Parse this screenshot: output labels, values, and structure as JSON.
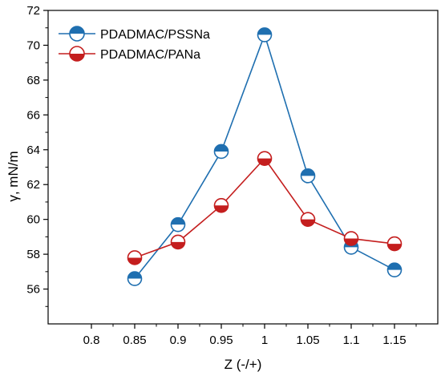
{
  "chart_data": {
    "type": "line",
    "xlabel": "Z (-/+)",
    "ylabel": "γ, mN/m",
    "xlim": [
      0.75,
      1.2
    ],
    "ylim": [
      54,
      72
    ],
    "xticks": [
      0.8,
      0.85,
      0.9,
      0.95,
      1,
      1.05,
      1.1,
      1.15
    ],
    "xtick_labels": [
      "0.8",
      "0.85",
      "0.9",
      "0.95",
      "1",
      "1.05",
      "1.1",
      "1.15"
    ],
    "yticks": [
      56,
      58,
      60,
      62,
      64,
      66,
      68,
      70,
      72
    ],
    "ytick_labels": [
      "56",
      "58",
      "60",
      "62",
      "64",
      "66",
      "68",
      "70",
      "72"
    ],
    "grid": false,
    "legend_position": "top-left",
    "x": [
      0.85,
      0.9,
      0.95,
      1,
      1.05,
      1.1,
      1.15
    ],
    "series": [
      {
        "name": "PDADMAC/PSSNa",
        "color": "#1f6fb0",
        "marker": "half-filled-circle-top",
        "values": [
          56.6,
          59.7,
          63.9,
          70.6,
          62.5,
          58.4,
          57.1
        ]
      },
      {
        "name": "PDADMAC/PANa",
        "color": "#c41e1e",
        "marker": "half-filled-circle-bottom",
        "values": [
          57.8,
          58.7,
          60.8,
          63.5,
          60.0,
          58.9,
          58.6
        ]
      }
    ]
  }
}
